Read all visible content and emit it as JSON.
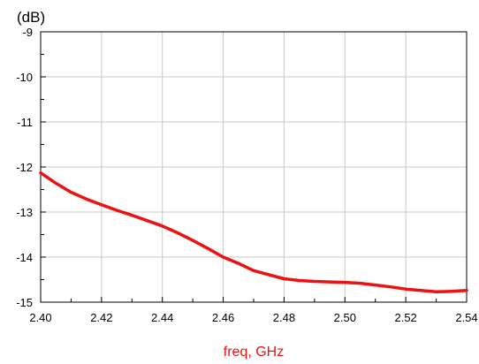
{
  "chart_data": {
    "type": "line",
    "title": "",
    "y_unit_label": "(dB)",
    "xlabel": "freq, GHz",
    "ylabel": "",
    "xlim": [
      2.4,
      2.54
    ],
    "ylim": [
      -15,
      -9
    ],
    "x_ticks": [
      "2.40",
      "2.42",
      "2.44",
      "2.46",
      "2.48",
      "2.50",
      "2.52",
      "2.54"
    ],
    "y_ticks": [
      "-9",
      "-10",
      "-11",
      "-12",
      "-13",
      "-14",
      "-15"
    ],
    "grid": true,
    "series": [
      {
        "color": "#ee1111",
        "x": [
          2.4,
          2.405,
          2.41,
          2.415,
          2.42,
          2.425,
          2.43,
          2.435,
          2.44,
          2.445,
          2.45,
          2.455,
          2.46,
          2.465,
          2.47,
          2.475,
          2.48,
          2.485,
          2.49,
          2.495,
          2.5,
          2.505,
          2.51,
          2.515,
          2.52,
          2.525,
          2.53,
          2.535,
          2.54
        ],
        "y": [
          -12.13,
          -12.36,
          -12.56,
          -12.71,
          -12.84,
          -12.96,
          -13.07,
          -13.19,
          -13.31,
          -13.46,
          -13.63,
          -13.81,
          -14.0,
          -14.14,
          -14.3,
          -14.39,
          -14.48,
          -14.52,
          -14.54,
          -14.55,
          -14.56,
          -14.58,
          -14.62,
          -14.66,
          -14.71,
          -14.74,
          -14.77,
          -14.76,
          -14.74
        ]
      }
    ]
  },
  "colors": {
    "axis_title": "#ee1111",
    "grid": "#c8c8c8",
    "frame": "#000000"
  }
}
